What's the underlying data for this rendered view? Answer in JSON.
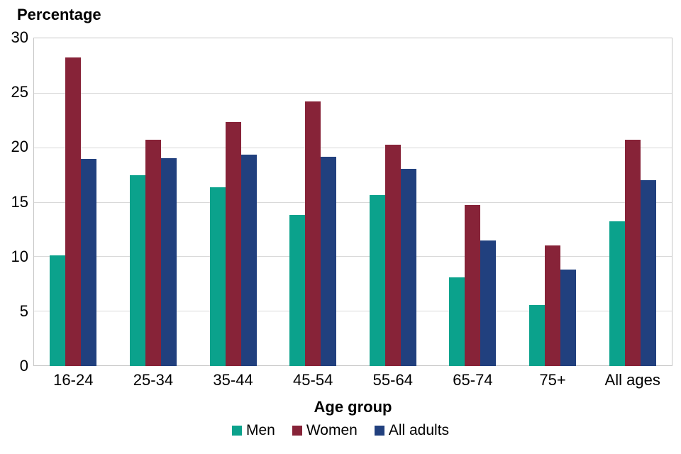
{
  "chart_data": {
    "type": "bar",
    "title": "Percentage",
    "xlabel": "Age group",
    "ylabel": "Percentage",
    "categories": [
      "16-24",
      "25-34",
      "35-44",
      "45-54",
      "55-64",
      "65-74",
      "75+",
      "All ages"
    ],
    "series": [
      {
        "name": "Men",
        "color": "#0BA28C",
        "values": [
          10.1,
          17.4,
          16.3,
          13.8,
          15.6,
          8.1,
          5.6,
          13.2
        ]
      },
      {
        "name": "Women",
        "color": "#872338",
        "values": [
          28.2,
          20.7,
          22.3,
          24.2,
          20.2,
          14.7,
          11.0,
          20.7
        ]
      },
      {
        "name": "All adults",
        "color": "#21407E",
        "values": [
          18.9,
          19.0,
          19.3,
          19.1,
          18.0,
          11.5,
          8.8,
          17.0
        ]
      }
    ],
    "ylim": [
      0,
      30
    ],
    "yticks": [
      0,
      5,
      10,
      15,
      20,
      25,
      30
    ],
    "grid": true,
    "legend_position": "bottom"
  },
  "colors": {
    "gridline": "#d9d9d9",
    "plot_border": "#c6c6c6",
    "text": "#000000",
    "background": "#ffffff"
  }
}
